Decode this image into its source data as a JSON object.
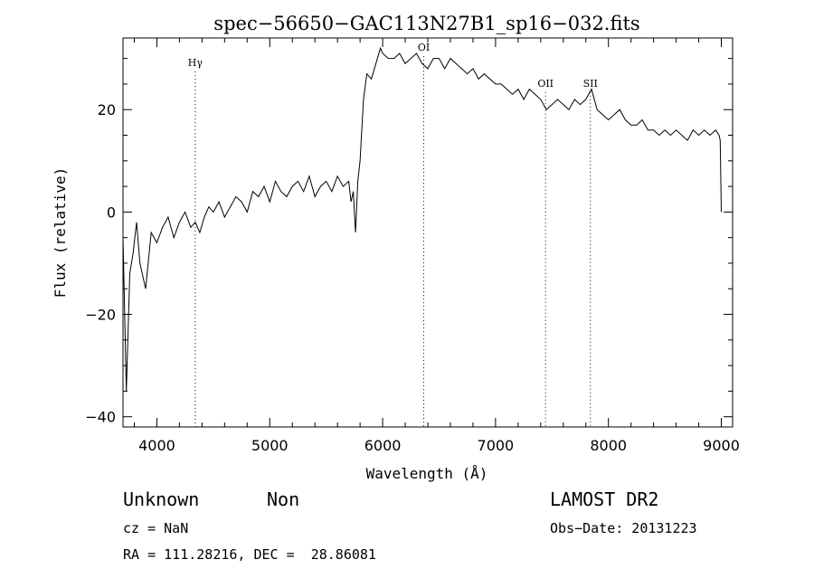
{
  "chart_data": {
    "type": "line",
    "title": "spec−56650−GAC113N27B1_sp16−032.fits",
    "xlabel": "Wavelength (Å)",
    "ylabel": "Flux (relative)",
    "xlim": [
      3700,
      9100
    ],
    "ylim": [
      -42,
      34
    ],
    "grid": false,
    "x_ticks": [
      4000,
      5000,
      6000,
      7000,
      8000,
      9000
    ],
    "y_ticks": [
      -40,
      -20,
      0,
      20
    ],
    "y_tick_labels": [
      "−40",
      "−20",
      "0",
      "20"
    ],
    "x": [
      3700,
      3730,
      3760,
      3790,
      3820,
      3850,
      3900,
      3950,
      4000,
      4050,
      4100,
      4150,
      4200,
      4250,
      4300,
      4340,
      4380,
      4420,
      4460,
      4500,
      4550,
      4600,
      4650,
      4700,
      4750,
      4800,
      4850,
      4900,
      4950,
      5000,
      5050,
      5100,
      5150,
      5200,
      5250,
      5300,
      5350,
      5400,
      5450,
      5500,
      5550,
      5600,
      5650,
      5700,
      5720,
      5740,
      5760,
      5780,
      5800,
      5830,
      5860,
      5900,
      5940,
      5980,
      6000,
      6050,
      6100,
      6150,
      6200,
      6250,
      6300,
      6350,
      6400,
      6450,
      6500,
      6550,
      6600,
      6650,
      6700,
      6750,
      6800,
      6850,
      6900,
      6950,
      7000,
      7050,
      7100,
      7150,
      7200,
      7250,
      7300,
      7350,
      7400,
      7450,
      7500,
      7550,
      7600,
      7650,
      7700,
      7750,
      7800,
      7850,
      7900,
      7950,
      8000,
      8050,
      8100,
      8150,
      8200,
      8250,
      8300,
      8350,
      8400,
      8450,
      8500,
      8550,
      8600,
      8650,
      8700,
      8750,
      8800,
      8850,
      8900,
      8950,
      8980,
      8990,
      9000
    ],
    "y": [
      -5,
      -35,
      -12,
      -8,
      -2,
      -10,
      -15,
      -4,
      -6,
      -3,
      -1,
      -5,
      -2,
      0,
      -3,
      -2,
      -4,
      -1,
      1,
      0,
      2,
      -1,
      1,
      3,
      2,
      0,
      4,
      3,
      5,
      2,
      6,
      4,
      3,
      5,
      6,
      4,
      7,
      3,
      5,
      6,
      4,
      7,
      5,
      6,
      2,
      4,
      -4,
      6,
      10,
      22,
      27,
      26,
      29,
      32,
      31,
      30,
      30,
      31,
      29,
      30,
      31,
      29,
      28,
      30,
      30,
      28,
      30,
      29,
      28,
      27,
      28,
      26,
      27,
      26,
      25,
      25,
      24,
      23,
      24,
      22,
      24,
      23,
      22,
      20,
      21,
      22,
      21,
      20,
      22,
      21,
      22,
      24,
      20,
      19,
      18,
      19,
      20,
      18,
      17,
      17,
      18,
      16,
      16,
      15,
      16,
      15,
      16,
      15,
      14,
      16,
      15,
      16,
      15,
      16,
      15,
      14,
      0
    ],
    "spectral_lines": [
      {
        "label": "Hγ",
        "x": 4340,
        "label_y": 28.5
      },
      {
        "label": "OI",
        "x": 6364,
        "label_y": 31.5
      },
      {
        "label": "OII",
        "x": 7443,
        "label_y": 24.5
      },
      {
        "label": "SII",
        "x": 7840,
        "label_y": 24.5
      }
    ]
  },
  "info": {
    "class_label": "Unknown",
    "subclass_label": "Non",
    "survey": "LAMOST DR2",
    "cz": "cz = NaN",
    "obs_date": "Obs−Date: 20131223",
    "coords": "RA = 111.28216, DEC =  28.86081"
  }
}
